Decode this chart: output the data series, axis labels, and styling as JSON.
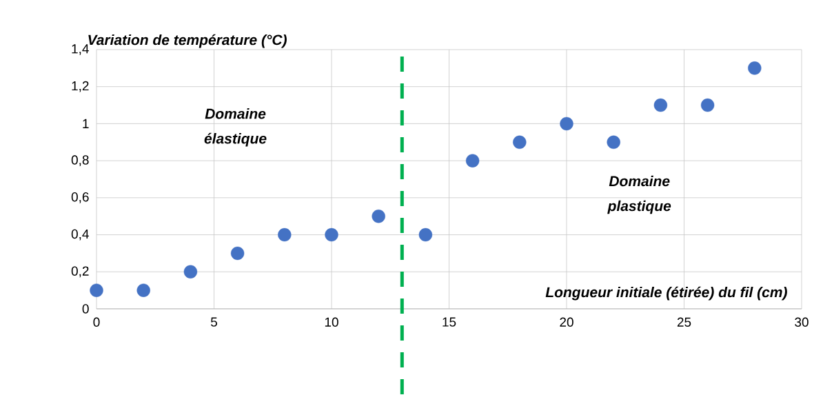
{
  "chart_data": {
    "type": "scatter",
    "xlabel": "Longueur initiale (étirée) du fil (cm)",
    "ylabel": "Variation de température (°C)",
    "x": [
      0,
      2,
      4,
      6,
      8,
      10,
      12,
      14,
      16,
      18,
      20,
      22,
      24,
      26,
      28
    ],
    "series": [
      {
        "color": "#4472c4",
        "values": [
          0.1,
          0.1,
          0.2,
          0.3,
          0.4,
          0.4,
          0.5,
          0.4,
          0.8,
          0.9,
          1.0,
          0.9,
          1.1,
          1.1,
          1.3
        ]
      }
    ],
    "xlim": [
      0,
      30
    ],
    "xticks": [
      0,
      5,
      10,
      15,
      20,
      25,
      30
    ],
    "ylim": [
      0,
      1.4
    ],
    "yticks": [
      0,
      {
        "value": 0.2,
        "label": "0,2"
      },
      {
        "value": 0.4,
        "label": "0,4"
      },
      {
        "value": 0.6,
        "label": "0,6"
      },
      {
        "value": 0.8,
        "label": "0,8"
      },
      1,
      {
        "value": 1.2,
        "label": "1,2"
      },
      {
        "value": 1.4,
        "label": "1,4"
      }
    ],
    "ref_lines": [
      {
        "axis": "x",
        "value": 13,
        "color": "#00b050",
        "line_style": "dashed"
      }
    ],
    "annotations": [
      "Domaine élastique",
      "Domaine plastique"
    ],
    "grid": true,
    "marker": "circle"
  }
}
